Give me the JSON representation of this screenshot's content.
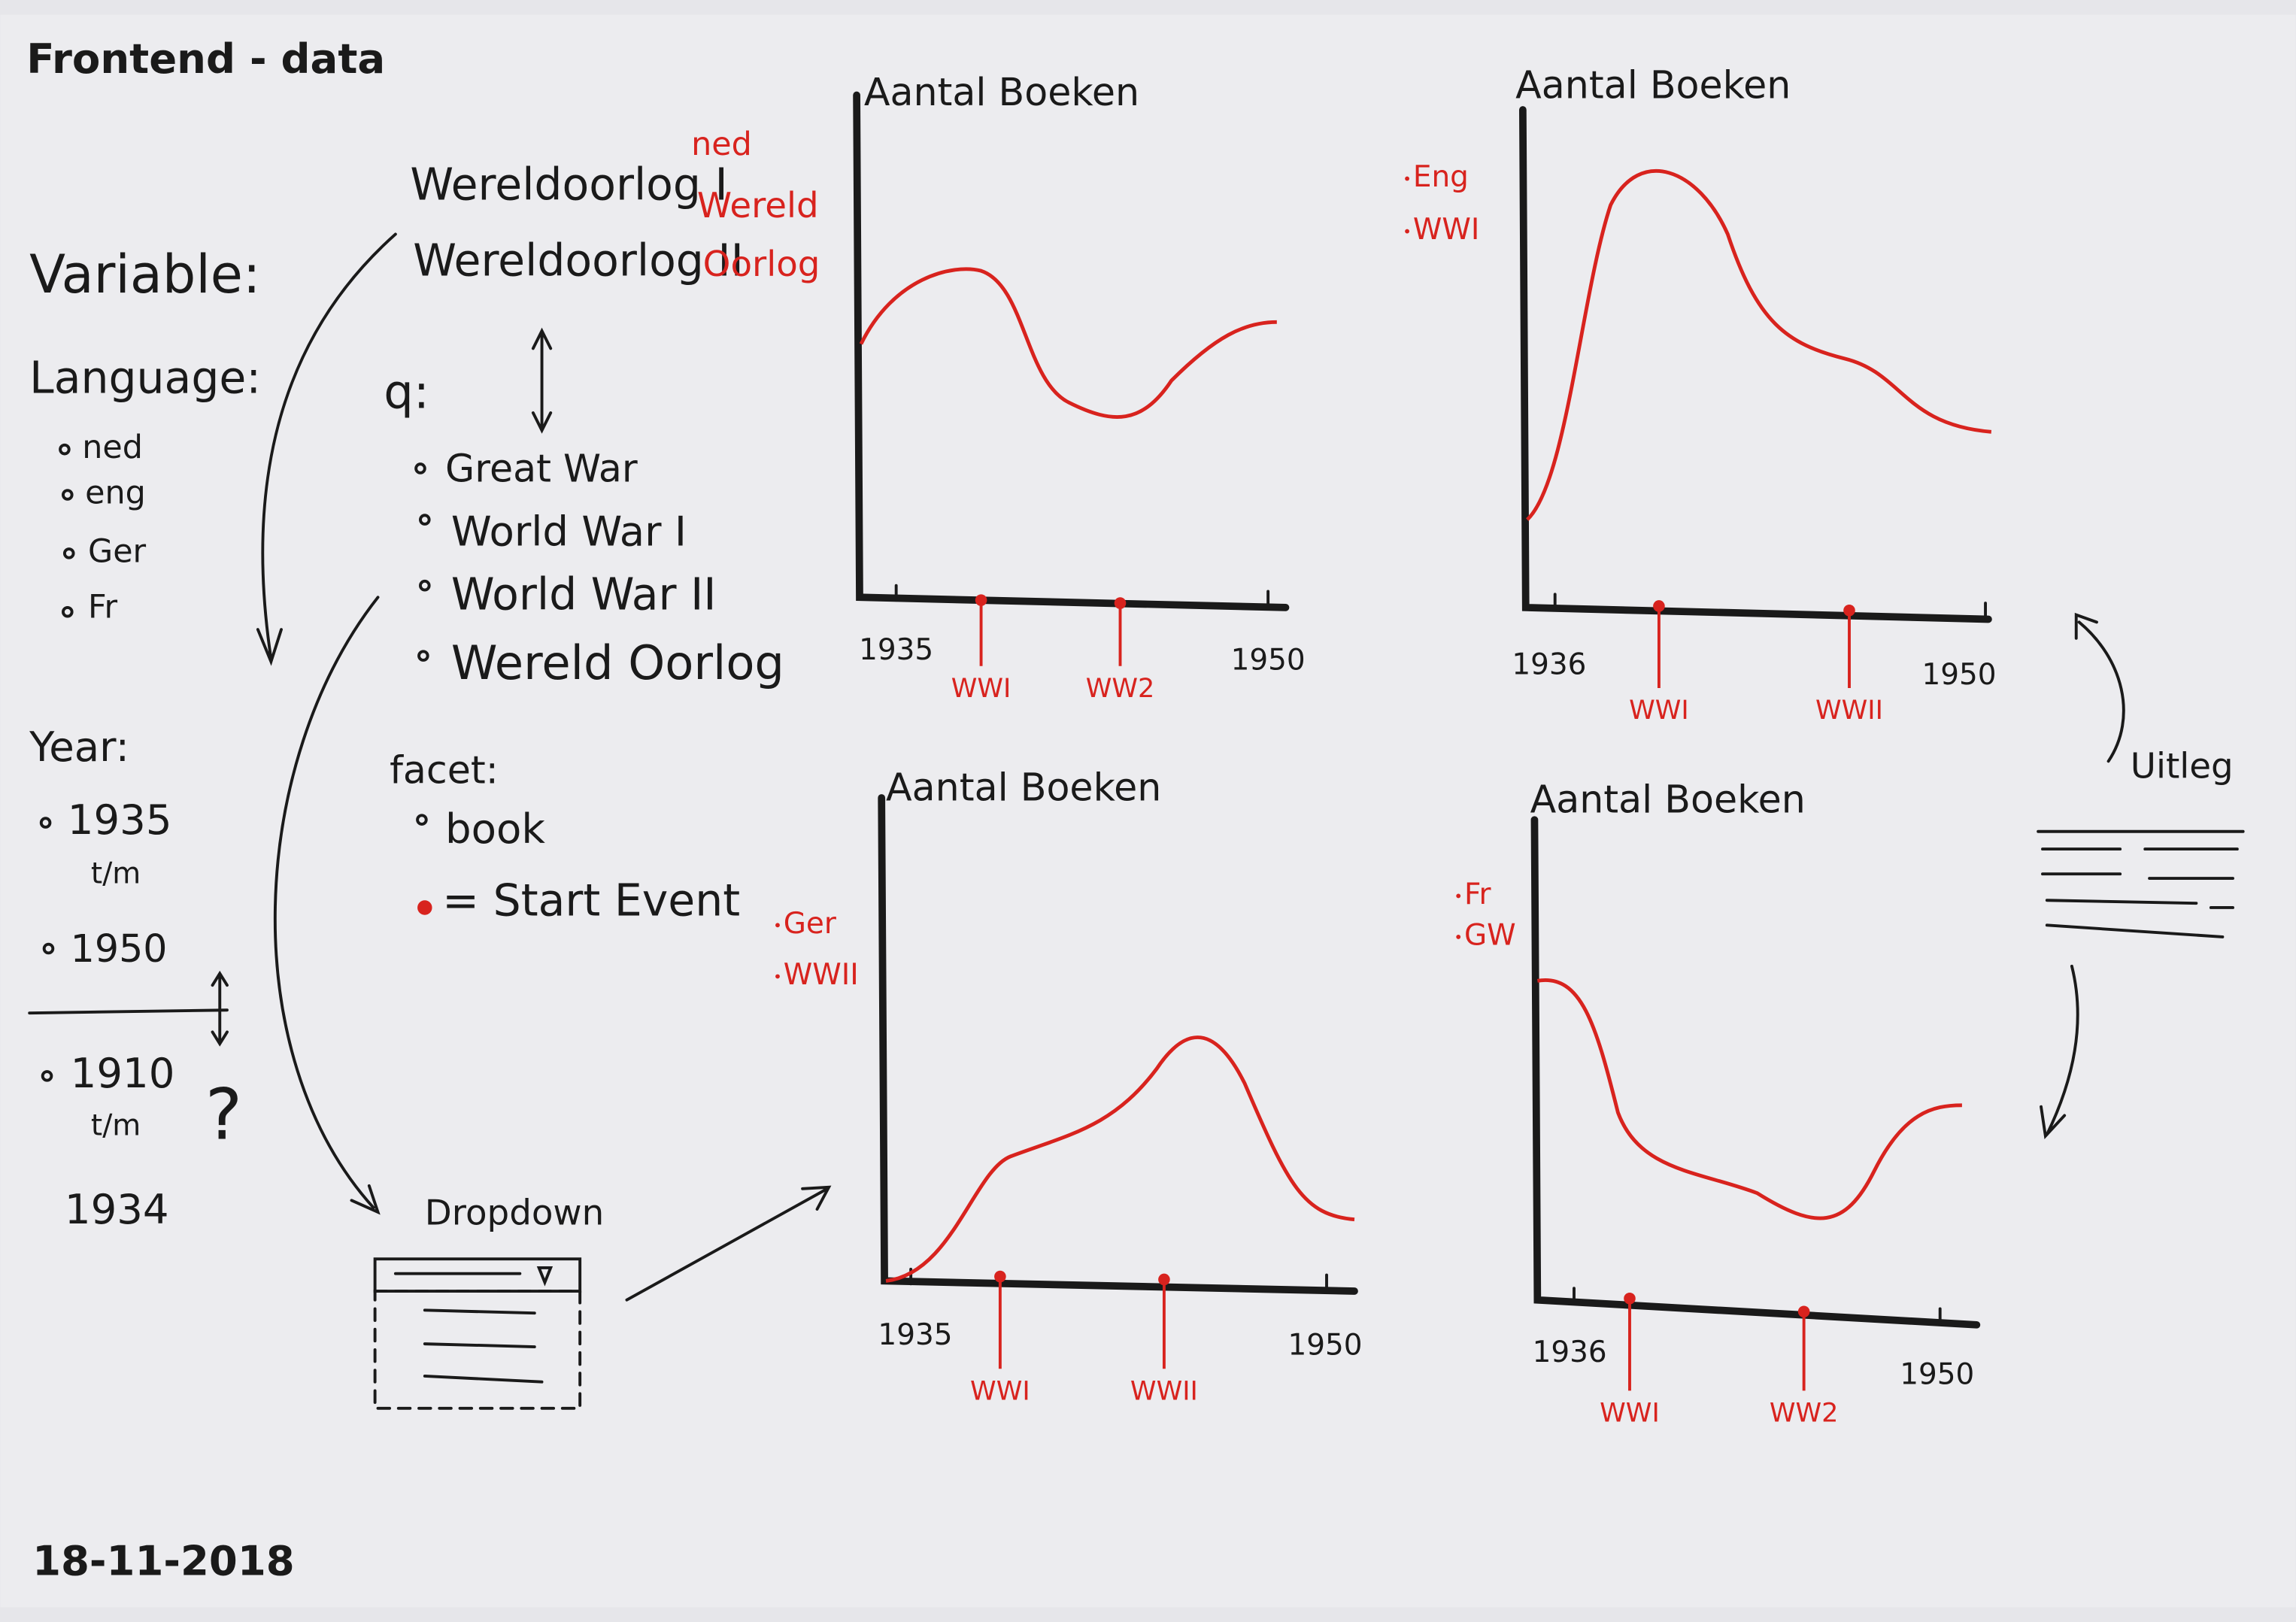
{
  "title": "Frontend - data",
  "date": "18-11-2018",
  "variables": {
    "heading": "Variable:",
    "language": {
      "label": "Language:",
      "options": [
        "ned",
        "eng",
        "Ger",
        "Fr"
      ]
    },
    "year": {
      "label": "Year:",
      "first": [
        "1935",
        "t/m",
        "1950"
      ],
      "second": [
        "1910",
        "t/m",
        "1934"
      ],
      "note": "?"
    }
  },
  "query": {
    "terms": [
      "Wereldoorlog I",
      "Wereldoorlog II"
    ],
    "translations": [
      "ned",
      "Wereld",
      "Oorlog"
    ],
    "label": "q:",
    "options": [
      "Great War",
      "World War I",
      "World War II",
      "Wereld Oorlog"
    ]
  },
  "facet": {
    "label": "facet:",
    "options": [
      "book"
    ],
    "legend": "= Start Event"
  },
  "dropdown": {
    "label": "Dropdown"
  },
  "explanation": {
    "label": "Uitleg"
  },
  "charts": [
    {
      "title": "Aantal Boeken",
      "tags": [],
      "x_start": "1935",
      "x_end": "1950",
      "events": [
        "WWI",
        "WW2"
      ]
    },
    {
      "title": "Aantal Boeken",
      "tags": [
        "Eng",
        "WWI"
      ],
      "x_start": "1936",
      "x_end": "1950",
      "events": [
        "WWI",
        "WWII"
      ]
    },
    {
      "title": "Aantal Boeken",
      "tags": [
        "Ger",
        "WWII"
      ],
      "x_start": "1935",
      "x_end": "1950",
      "events": [
        "WWI",
        "WWII"
      ]
    },
    {
      "title": "Aantal Boeken",
      "tags": [
        "Fr",
        "GW"
      ],
      "x_start": "1936",
      "x_end": "1950",
      "events": [
        "WWI",
        "WW2"
      ]
    }
  ]
}
